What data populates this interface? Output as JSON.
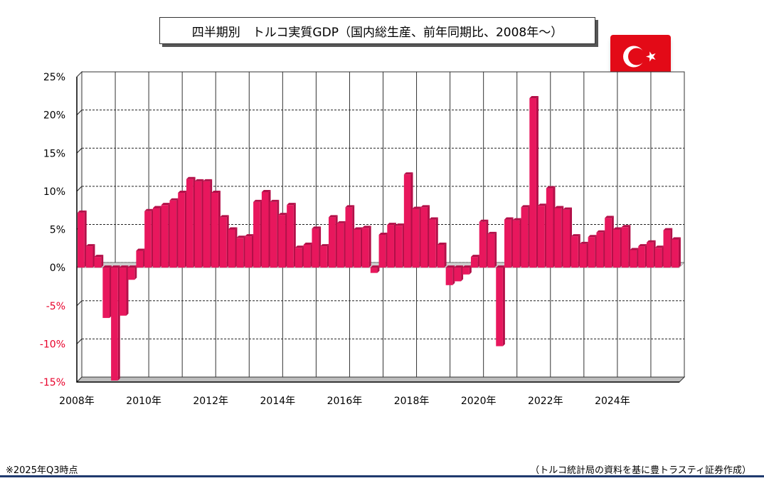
{
  "title": "四半期別　トルコ実質GDP（国内総生産、前年同期比、2008年～）",
  "flag": {
    "name": "turkey-flag",
    "color": "#e30a17"
  },
  "footnote": "※2025年Q3時点",
  "source": "（トルコ統計局の資料を基に豊トラスティ証券作成）",
  "colors": {
    "bar": "#e8175d",
    "bar_side": "#b30f48",
    "negative_label": "#e8002a"
  },
  "chart_data": {
    "type": "bar",
    "ylim": [
      -15,
      25
    ],
    "yticks": [
      {
        "value": 25,
        "label": "25%"
      },
      {
        "value": 20,
        "label": "20%"
      },
      {
        "value": 15,
        "label": "15%"
      },
      {
        "value": 10,
        "label": "10%"
      },
      {
        "value": 5,
        "label": "5%"
      },
      {
        "value": 0,
        "label": "0%"
      },
      {
        "value": -5,
        "label": "-5%"
      },
      {
        "value": -10,
        "label": "-10%"
      },
      {
        "value": -15,
        "label": "-15%"
      }
    ],
    "xlabels": [
      "2008年",
      "2010年",
      "2012年",
      "2014年",
      "2016年",
      "2018年",
      "2020年",
      "2022年",
      "2024年"
    ],
    "grid": true,
    "values": [
      7.2,
      2.8,
      1.4,
      -6.6,
      -14.8,
      -6.3,
      -1.6,
      2.2,
      7.4,
      7.8,
      8.2,
      8.8,
      9.8,
      11.6,
      11.3,
      11.3,
      9.8,
      6.6,
      5.0,
      3.9,
      4.1,
      8.6,
      9.9,
      8.6,
      6.9,
      8.2,
      2.6,
      3.0,
      5.1,
      2.8,
      6.6,
      5.8,
      7.9,
      5.0,
      5.2,
      -0.7,
      4.3,
      5.6,
      5.5,
      12.2,
      7.7,
      7.9,
      6.3,
      3.0,
      -2.3,
      -1.8,
      -0.9,
      1.4,
      6.0,
      4.4,
      -10.3,
      6.3,
      6.2,
      7.9,
      22.2,
      8.1,
      10.4,
      7.8,
      7.6,
      4.1,
      3.1,
      4.0,
      4.6,
      6.5,
      5.0,
      5.3,
      2.3,
      2.8,
      3.3,
      2.6,
      4.9,
      3.7
    ]
  }
}
